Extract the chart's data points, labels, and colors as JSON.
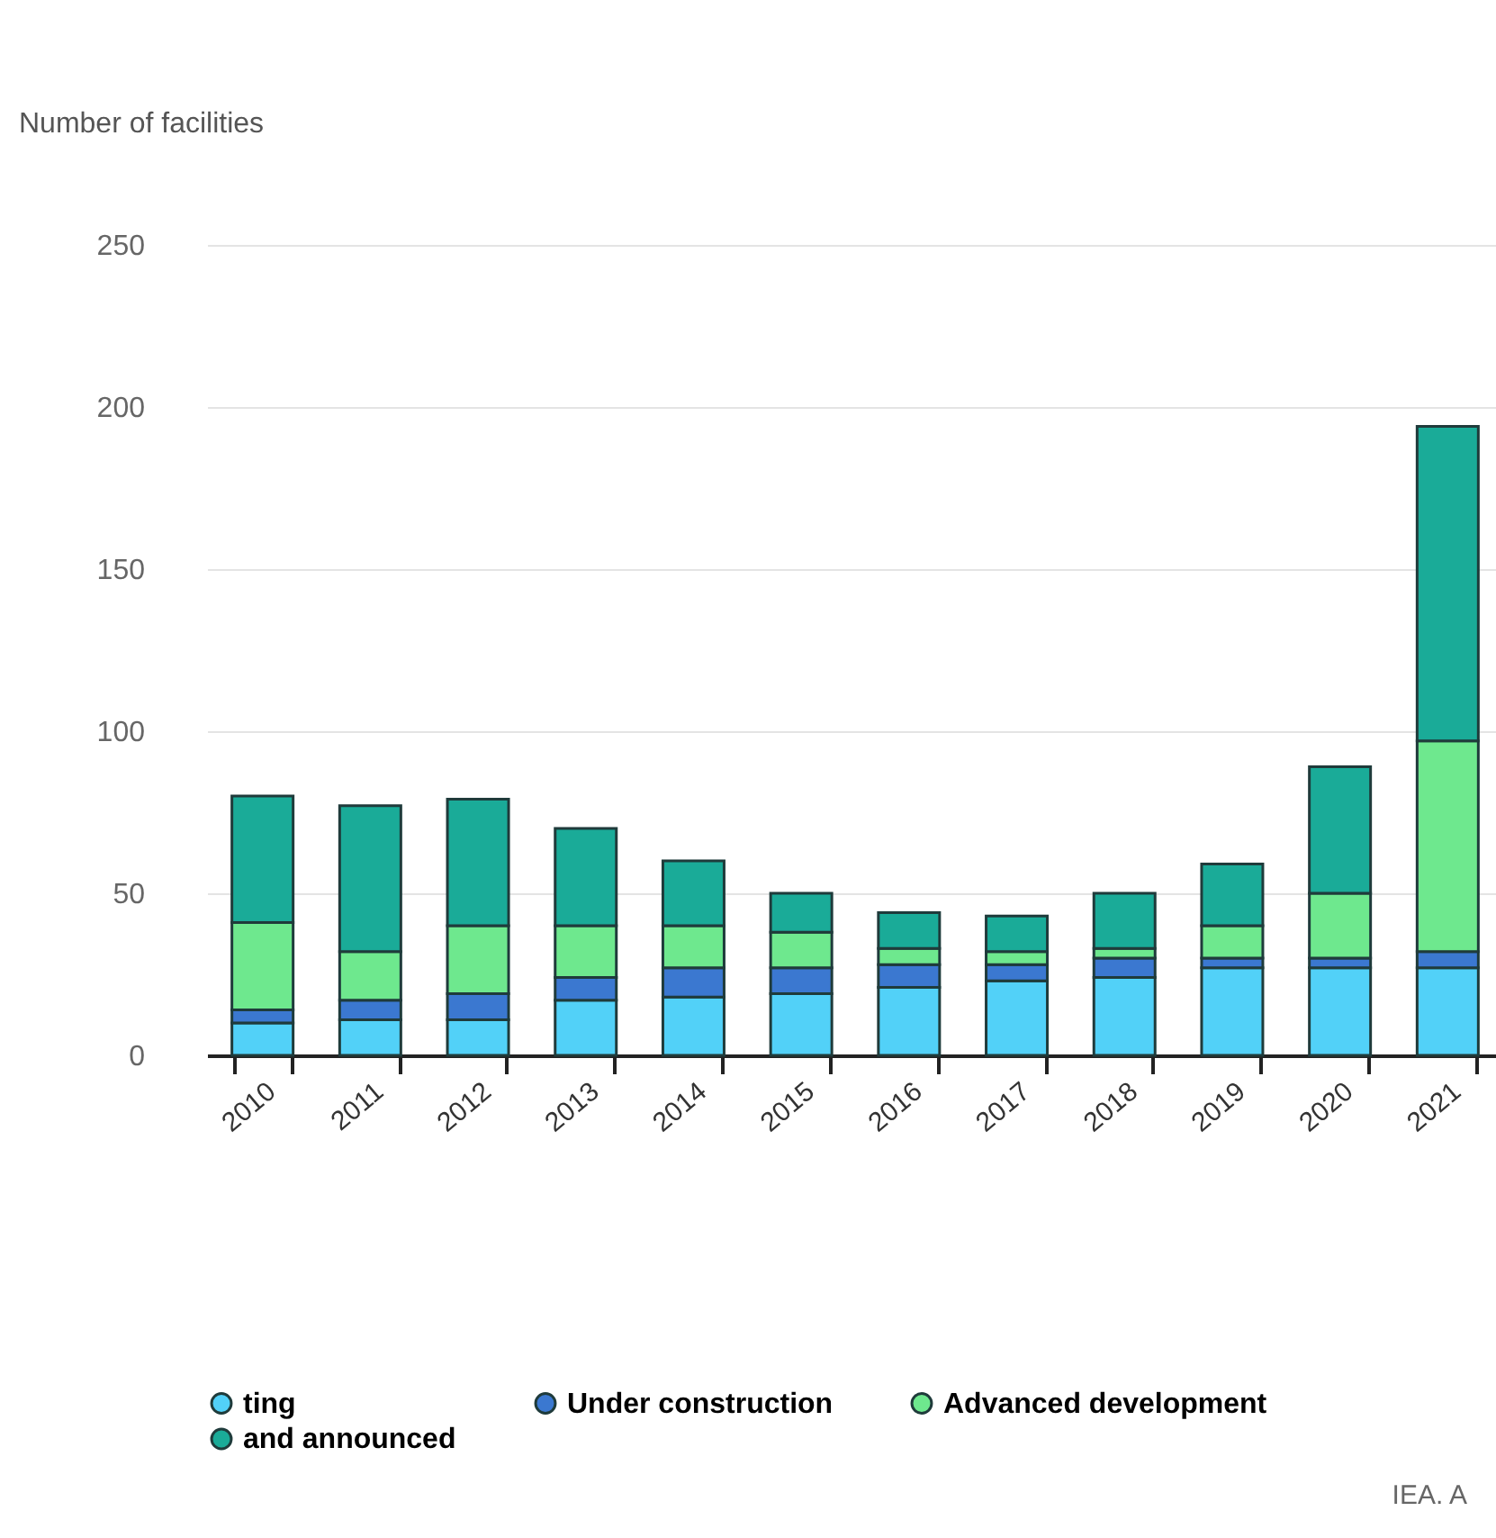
{
  "chart_data": {
    "type": "bar",
    "stacked": true,
    "ylabel": "Number of facilities",
    "categories": [
      "2010",
      "2011",
      "2012",
      "2013",
      "2014",
      "2015",
      "2016",
      "2017",
      "2018",
      "2019",
      "2020",
      "2021"
    ],
    "series": [
      {
        "name": "ting",
        "color": "#52d1f8",
        "values": [
          10,
          11,
          11,
          17,
          18,
          19,
          21,
          23,
          24,
          27,
          27,
          27
        ]
      },
      {
        "name": "Under construction",
        "color": "#3b78d0",
        "values": [
          4,
          6,
          8,
          7,
          9,
          8,
          7,
          5,
          6,
          3,
          3,
          5
        ]
      },
      {
        "name": "Advanced development",
        "color": "#6ee88e",
        "values": [
          27,
          15,
          21,
          16,
          13,
          11,
          5,
          4,
          3,
          10,
          20,
          65
        ]
      },
      {
        "name": "and announced",
        "color": "#1aab98",
        "values": [
          39,
          45,
          39,
          30,
          20,
          12,
          11,
          11,
          17,
          19,
          39,
          97
        ]
      }
    ],
    "ylim": [
      0,
      250
    ],
    "yticks": [
      0,
      50,
      100,
      150,
      200,
      250
    ],
    "grid": "y",
    "legend": "bottom",
    "annotations": [
      "IEA. A"
    ]
  }
}
